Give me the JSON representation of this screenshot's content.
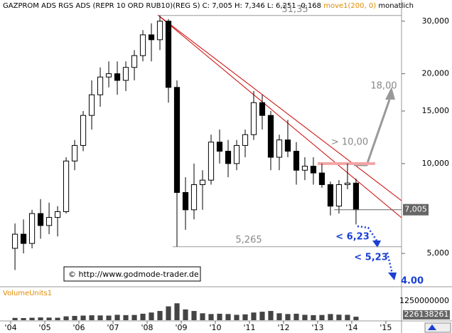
{
  "header": {
    "title": "GAZPROM ADS RGS ADS (REPR 10 ORD RUB10)(REG S) C: 7,005 H: 7,346 L: 6,251 -0,168",
    "indicator": "move1(200, 0)",
    "period": "monatlich"
  },
  "copyright": "© http://www.godmode-trader.de",
  "chart_data": {
    "type": "candlestick",
    "xlim": [
      2003.79,
      2015.46
    ],
    "xticks": [
      {
        "value": 2004,
        "label": "'04"
      },
      {
        "value": 2005,
        "label": "'05"
      },
      {
        "value": 2006,
        "label": "'06"
      },
      {
        "value": 2007,
        "label": "'07"
      },
      {
        "value": 2008,
        "label": "'08"
      },
      {
        "value": 2009,
        "label": "'09"
      },
      {
        "value": 2010,
        "label": "'10"
      },
      {
        "value": 2011,
        "label": "'11"
      },
      {
        "value": 2012,
        "label": "'12"
      },
      {
        "value": 2013,
        "label": "'13"
      },
      {
        "value": 2014,
        "label": "'14"
      },
      {
        "value": 2015,
        "label": "'15"
      }
    ],
    "ylim": [
      3.93,
      32
    ],
    "log_scale": true,
    "yticks": [
      {
        "value": 30,
        "label": "30,000"
      },
      {
        "value": 20,
        "label": "20,000"
      },
      {
        "value": 15,
        "label": "15,000"
      },
      {
        "value": 10,
        "label": "10,000"
      },
      {
        "value": 5,
        "label": "5,000"
      }
    ],
    "x": [
      2004.125,
      2004.375,
      2004.625,
      2004.875,
      2005.125,
      2005.375,
      2005.625,
      2005.875,
      2006.125,
      2006.375,
      2006.625,
      2006.875,
      2007.125,
      2007.375,
      2007.625,
      2007.875,
      2008.125,
      2008.375,
      2008.625,
      2008.875,
      2009.125,
      2009.375,
      2009.625,
      2009.875,
      2010.125,
      2010.375,
      2010.625,
      2010.875,
      2011.125,
      2011.375,
      2011.625,
      2011.875,
      2012.125,
      2012.375,
      2012.625,
      2012.875,
      2013.125,
      2013.375,
      2013.625,
      2013.875,
      2014.125
    ],
    "open": [
      5.2,
      5.8,
      5.4,
      6.8,
      6.2,
      6.6,
      6.9,
      10.2,
      11.5,
      14.5,
      17,
      19.5,
      20,
      19,
      21,
      23,
      27,
      26,
      30,
      18,
      8,
      7,
      8.5,
      8.8,
      11.8,
      11,
      10,
      11.5,
      12.5,
      16,
      14.5,
      10.5,
      12,
      11,
      9.5,
      9.8,
      9.3,
      8.5,
      7.2,
      8.5,
      8.6
    ],
    "high": [
      6.3,
      6.5,
      7.0,
      7.6,
      7.4,
      7.2,
      10.5,
      12,
      15,
      19,
      21,
      22,
      22,
      22,
      24,
      28,
      29.5,
      31.35,
      30.5,
      19,
      9,
      10,
      9.5,
      12.5,
      13,
      12,
      12,
      13,
      17.5,
      17,
      15,
      12.5,
      14,
      11.8,
      10.5,
      10.5,
      10,
      8.7,
      8.8,
      10,
      8.9
    ],
    "low": [
      4.4,
      5.0,
      5.2,
      5.6,
      5.8,
      5.7,
      6.8,
      9.5,
      11,
      13,
      15.5,
      18,
      17,
      17.5,
      19,
      22,
      22,
      24,
      16,
      5.265,
      6,
      6.5,
      7,
      8.5,
      10,
      9,
      9.5,
      10.5,
      12,
      13,
      9.5,
      9.5,
      10.5,
      8.5,
      8.8,
      8.5,
      8.3,
      6.7,
      6.8,
      8.2,
      6.251
    ],
    "close": [
      5.8,
      5.4,
      6.8,
      6.2,
      6.6,
      6.9,
      10.2,
      11.5,
      14.5,
      17,
      19.5,
      20,
      19,
      21,
      23,
      27,
      26,
      30,
      18,
      8,
      7,
      8.5,
      8.8,
      11.8,
      11,
      10,
      11.5,
      12.5,
      16,
      14.5,
      10.5,
      12,
      11,
      9.5,
      9.8,
      9.3,
      8.5,
      7.2,
      8.5,
      8.6,
      7.005
    ],
    "volume_label": "VolumeUnits1",
    "volume_lim": [
      0,
      1250000000
    ],
    "volume_ticks": [
      1250000000
    ],
    "volume": [
      150000000,
      140000000,
      160000000,
      180000000,
      170000000,
      160000000,
      250000000,
      280000000,
      300000000,
      320000000,
      310000000,
      300000000,
      350000000,
      330000000,
      340000000,
      420000000,
      500000000,
      600000000,
      900000000,
      1100000000,
      700000000,
      600000000,
      450000000,
      400000000,
      420000000,
      400000000,
      350000000,
      380000000,
      500000000,
      550000000,
      600000000,
      450000000,
      400000000,
      420000000,
      350000000,
      330000000,
      340000000,
      400000000,
      360000000,
      350000000,
      226138261
    ],
    "annotations": [
      {
        "value": 31.35,
        "label": "31,35"
      },
      {
        "value": 5.265,
        "label": "5,265"
      },
      {
        "value": 10,
        "label": "> 10,00"
      },
      {
        "value": 18,
        "label": "18,00"
      },
      {
        "value": 6.23,
        "label": "< 6,23"
      },
      {
        "value": 5.23,
        "label": "< 5,23"
      },
      {
        "value": 4,
        "label": "4.00"
      }
    ],
    "last_price": 7.005,
    "last_price_label": "7,005"
  }
}
